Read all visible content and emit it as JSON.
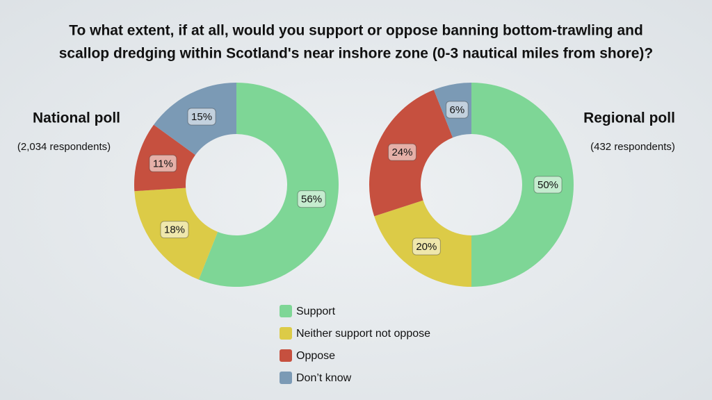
{
  "title": [
    "To what extent, if at all, would you support or oppose banning bottom-trawling and",
    "scallop dredging within Scotland's near inshore zone (0-3 nautical miles from shore)?"
  ],
  "chart_data": [
    {
      "type": "pie",
      "title": "National poll",
      "subtitle": "(2,034 respondents)",
      "categories": [
        "Support",
        "Neither support not oppose",
        "Oppose",
        "Don’t know"
      ],
      "values": [
        56,
        18,
        11,
        15
      ],
      "value_labels": [
        "56%",
        "18%",
        "11%",
        "15%"
      ],
      "colors": [
        "#7ed696",
        "#dccb47",
        "#c6503f",
        "#7b9ab5"
      ]
    },
    {
      "type": "pie",
      "title": "Regional poll",
      "subtitle": "(432 respondents)",
      "categories": [
        "Support",
        "Neither support not oppose",
        "Oppose",
        "Don’t know"
      ],
      "values": [
        50,
        20,
        24,
        6
      ],
      "value_labels": [
        "50%",
        "20%",
        "24%",
        "6%"
      ],
      "colors": [
        "#7ed696",
        "#dccb47",
        "#c6503f",
        "#7b9ab5"
      ]
    }
  ]
}
